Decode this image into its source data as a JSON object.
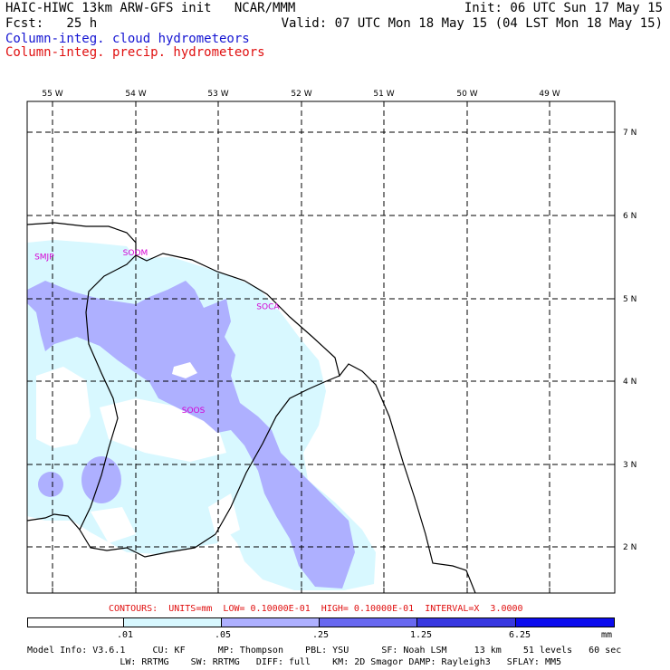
{
  "header": {
    "line1_left": "HAIC-HIWC 13km ARW-GFS init   NCAR/MMM",
    "line1_right": "Init: 06 UTC Sun 17 May 15",
    "line2_left": "Fcst:   25 h",
    "line2_right": "Valid: 07 UTC Mon 18 May 15 (04 LST Mon 18 May 15)",
    "field1": "Column-integ. cloud hydrometeors",
    "field1_color": "#1414d2",
    "field2": "Column-integ. precip. hydrometeors",
    "field2_color": "#e01010"
  },
  "map": {
    "lon_labels": [
      "55 W",
      "54 W",
      "53 W",
      "52 W",
      "51 W",
      "50 W",
      "49 W"
    ],
    "lat_labels": [
      "7 N",
      "6 N",
      "5 N",
      "4 N",
      "3 N",
      "2 N"
    ],
    "stations": [
      {
        "id": "SMJP",
        "lon": -55.1,
        "lat": 5.5
      },
      {
        "id": "SOOM",
        "lon": -54.0,
        "lat": 5.55
      },
      {
        "id": "SOCA",
        "lon": -52.4,
        "lat": 4.9
      },
      {
        "id": "SOOS",
        "lon": -53.3,
        "lat": 3.65
      }
    ],
    "colors": {
      "light": "#d8f8ff",
      "medium": "#aeb0ff",
      "dark": "#6868f0",
      "darker": "#3838e0",
      "darkest": "#0c0cee"
    }
  },
  "contours_line": "CONTOURS:  UNITS=mm  LOW= 0.10000E-01  HIGH= 0.10000E-01  INTERVAL=X  3.0000",
  "contours_color": "#e01010",
  "colorbar": {
    "labels": [
      ".01",
      ".05",
      ".25",
      "1.25",
      "6.25",
      "mm"
    ],
    "colors": [
      "#ffffff",
      "#d8f8ff",
      "#aeb0ff",
      "#6868f0",
      "#3838e0",
      "#0c0cee"
    ]
  },
  "footer": {
    "line1": "Model Info: V3.6.1     CU: KF      MP: Thompson    PBL: YSU      SF: Noah LSM     13 km    51 levels   60 sec",
    "line2": "                 LW: RRTMG    SW: RRTMG   DIFF: full    KM: 2D Smagor DAMP: Rayleigh3   SFLAY: MM5"
  }
}
